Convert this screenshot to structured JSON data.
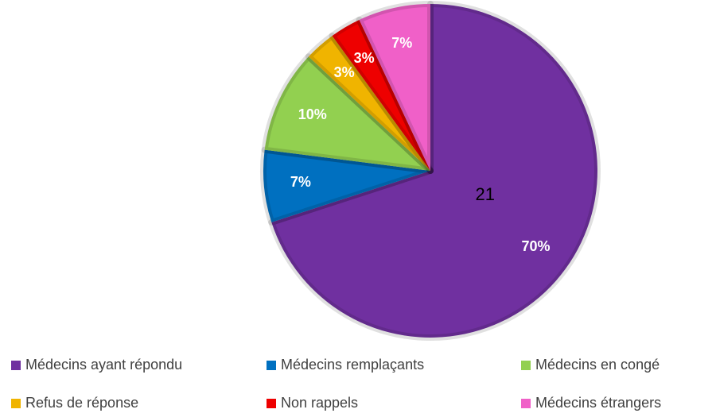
{
  "chart_data": {
    "type": "pie",
    "categories": [
      "Médecins ayant répondu",
      "Médecins remplaçants",
      "Médecins en congé",
      "Refus de réponse",
      "Non rappels",
      "Médecins étrangers"
    ],
    "values": [
      70,
      7,
      10,
      3,
      3,
      7
    ],
    "value_labels": [
      "70%",
      "7%",
      "10%",
      "3%",
      "3%",
      "7%"
    ],
    "colors": [
      "#7030a0",
      "#0070c0",
      "#92d050",
      "#f0b400",
      "#ee0000",
      "#f060c8"
    ],
    "annotation": "21"
  }
}
